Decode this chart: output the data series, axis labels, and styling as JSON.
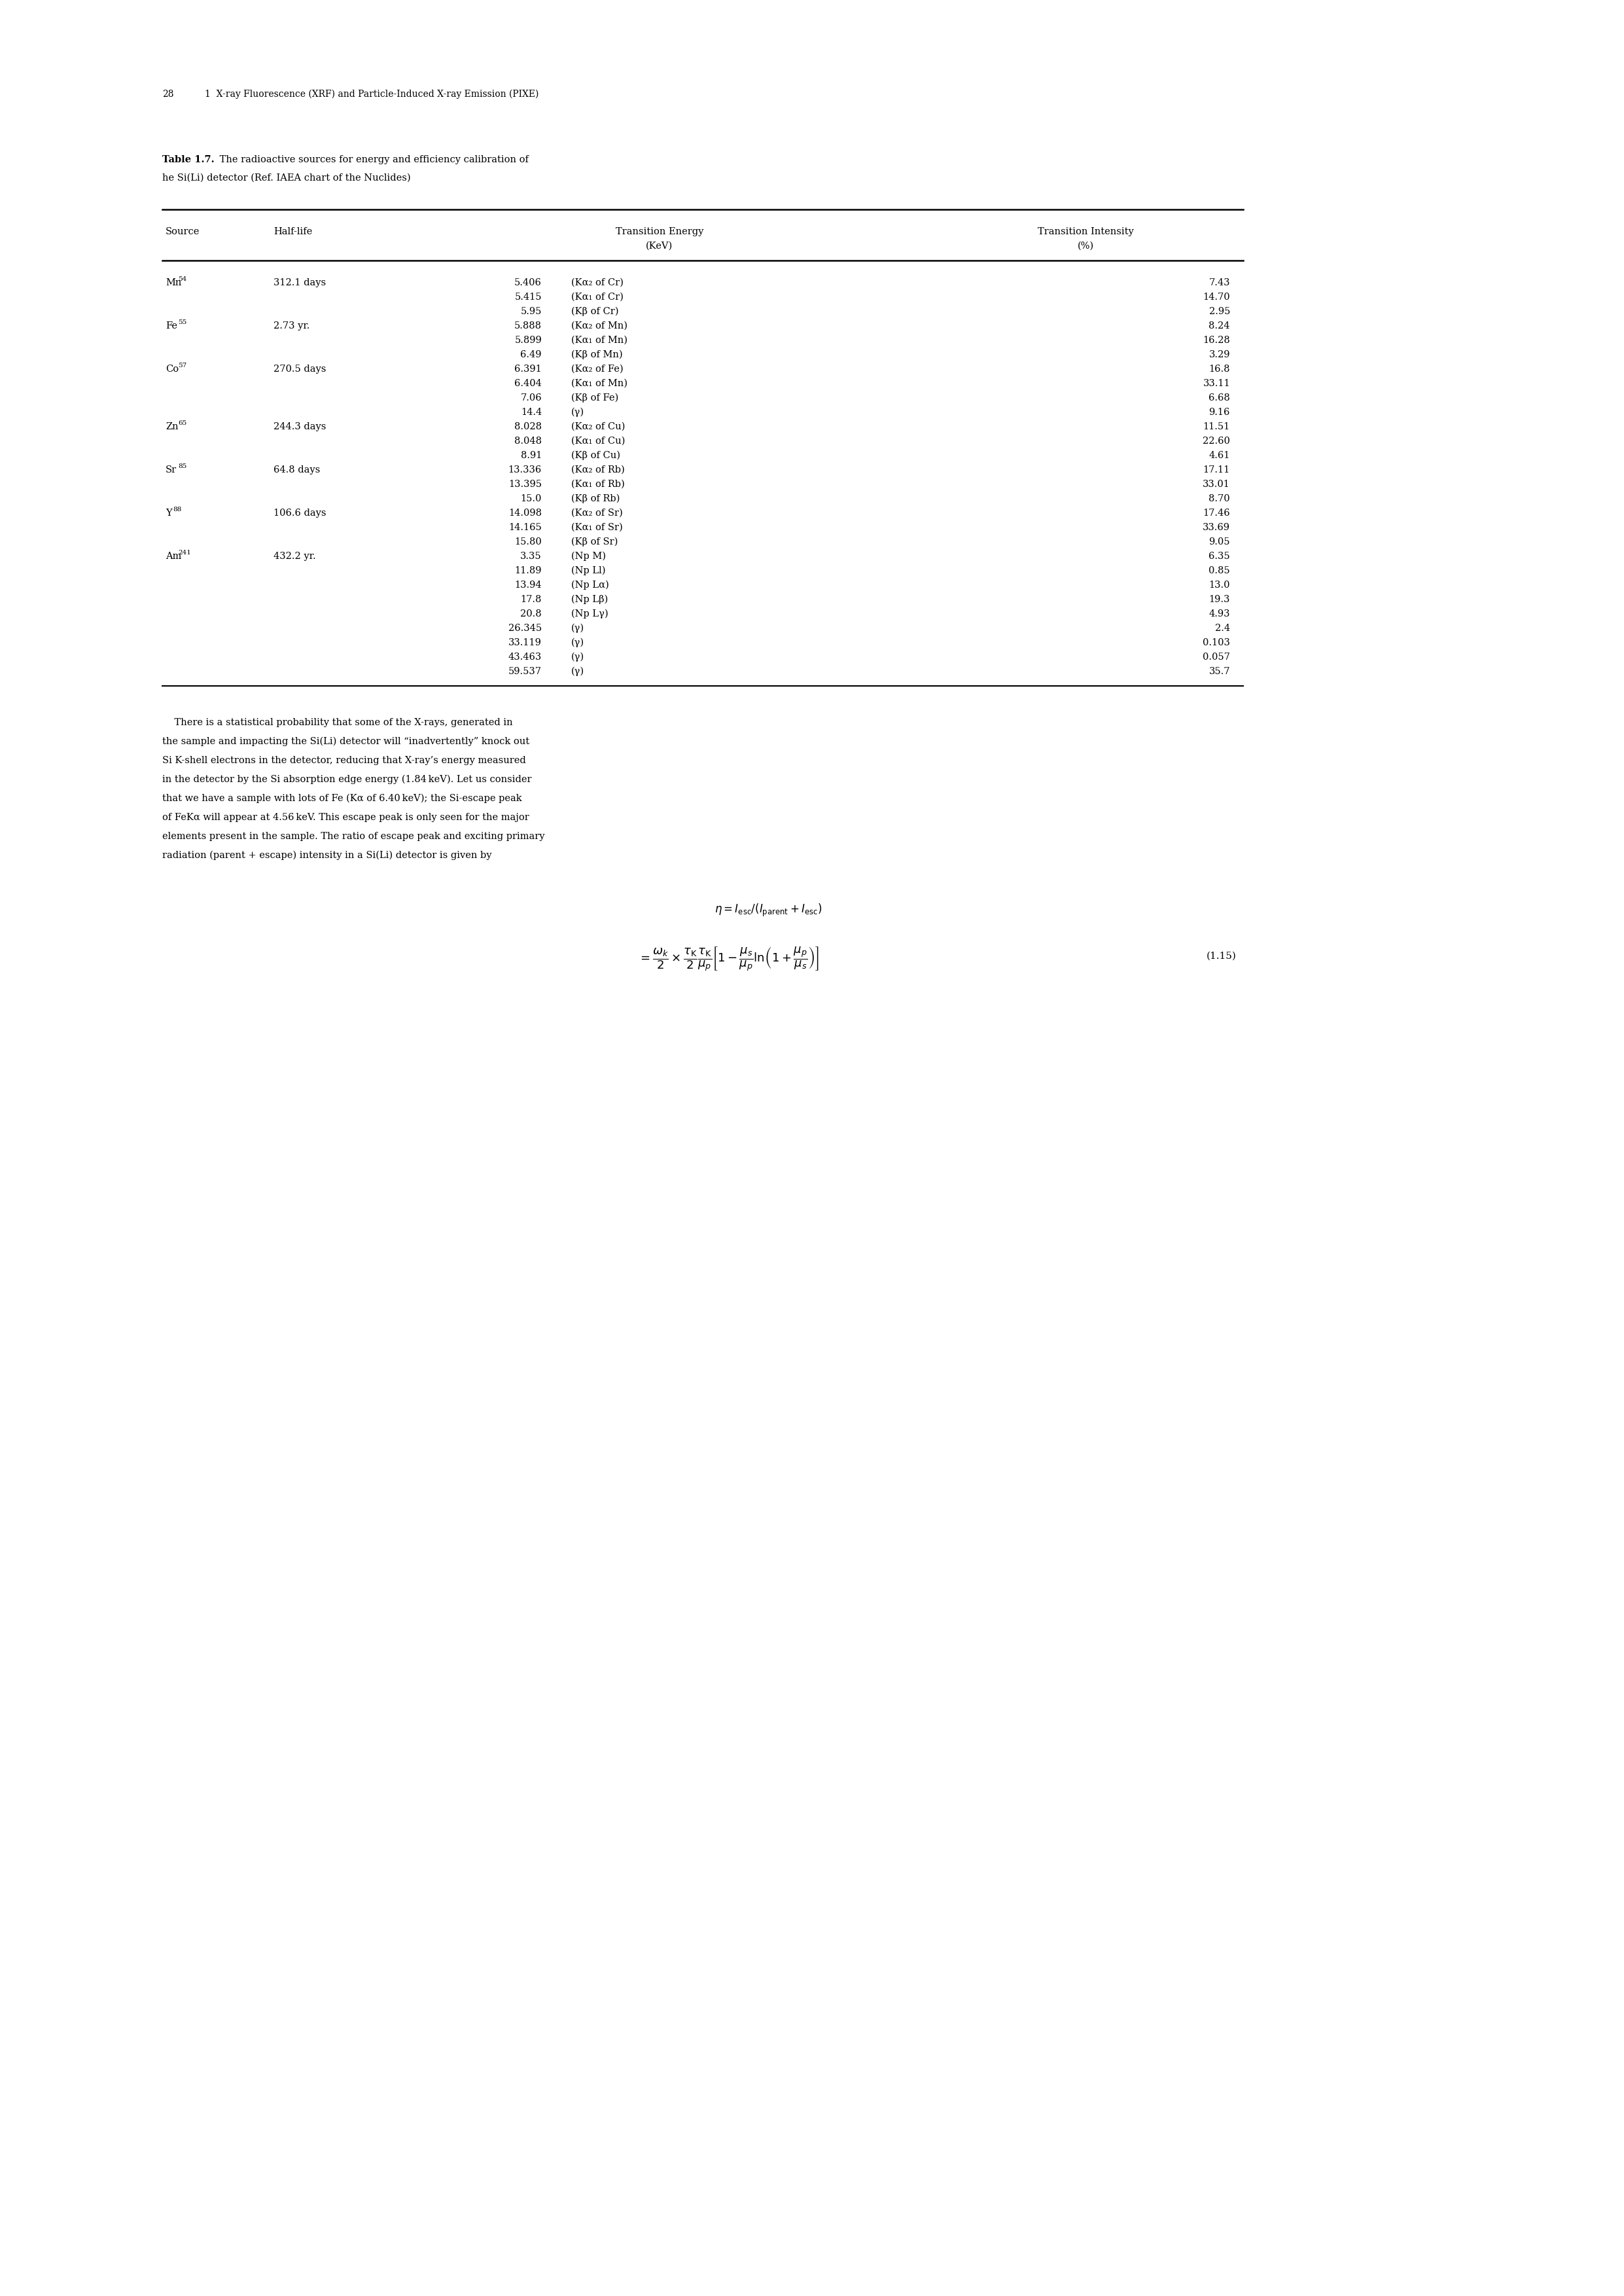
{
  "page_number": "28",
  "chapter_header": "1  X-ray Fluorescence (XRF) and Particle-Induced X-ray Emission (PIXE)",
  "table_title_bold": "Table 1.7.",
  "table_title_rest": " The radioactive sources for energy and efficiency calibration of the Si(Li) detector (Ref. IAEA chart of the Nuclides)",
  "rows": [
    [
      "Mn",
      "54",
      "312.1 days",
      "5.406",
      "(Kα₂ of Cr)",
      "7.43"
    ],
    [
      "",
      "",
      "",
      "5.415",
      "(Kα₁ of Cr)",
      "14.70"
    ],
    [
      "",
      "",
      "",
      "5.95",
      "(Kβ of Cr)",
      "2.95"
    ],
    [
      "Fe",
      "55",
      "2.73 yr.",
      "5.888",
      "(Kα₂ of Mn)",
      "8.24"
    ],
    [
      "",
      "",
      "",
      "5.899",
      "(Kα₁ of Mn)",
      "16.28"
    ],
    [
      "",
      "",
      "",
      "6.49",
      "(Kβ of Mn)",
      "3.29"
    ],
    [
      "Co",
      "57",
      "270.5 days",
      "6.391",
      "(Kα₂ of Fe)",
      "16.8"
    ],
    [
      "",
      "",
      "",
      "6.404",
      "(Kα₁ of Mn)",
      "33.11"
    ],
    [
      "",
      "",
      "",
      "7.06",
      "(Kβ of Fe)",
      "6.68"
    ],
    [
      "",
      "",
      "",
      "14.4",
      "(γ)",
      "9.16"
    ],
    [
      "Zn",
      "65",
      "244.3 days",
      "8.028",
      "(Kα₂ of Cu)",
      "11.51"
    ],
    [
      "",
      "",
      "",
      "8.048",
      "(Kα₁ of Cu)",
      "22.60"
    ],
    [
      "",
      "",
      "",
      "8.91",
      "(Kβ of Cu)",
      "4.61"
    ],
    [
      "Sr",
      "85",
      "64.8 days",
      "13.336",
      "(Kα₂ of Rb)",
      "17.11"
    ],
    [
      "",
      "",
      "",
      "13.395",
      "(Kα₁ of Rb)",
      "33.01"
    ],
    [
      "",
      "",
      "",
      "15.0",
      "(Kβ of Rb)",
      "8.70"
    ],
    [
      "Y",
      "88",
      "106.6 days",
      "14.098",
      "(Kα₂ of Sr)",
      "17.46"
    ],
    [
      "",
      "",
      "",
      "14.165",
      "(Kα₁ of Sr)",
      "33.69"
    ],
    [
      "",
      "",
      "",
      "15.80",
      "(Kβ of Sr)",
      "9.05"
    ],
    [
      "Am",
      "241",
      "432.2 yr.",
      "3.35",
      "(Np M)",
      "6.35"
    ],
    [
      "",
      "",
      "",
      "11.89",
      "(Np Ll)",
      "0.85"
    ],
    [
      "",
      "",
      "",
      "13.94",
      "(Np Lα)",
      "13.0"
    ],
    [
      "",
      "",
      "",
      "17.8",
      "(Np Lβ)",
      "19.3"
    ],
    [
      "",
      "",
      "",
      "20.8",
      "(Np Lγ)",
      "4.93"
    ],
    [
      "",
      "",
      "",
      "26.345",
      "(γ)",
      "2.4"
    ],
    [
      "",
      "",
      "",
      "33.119",
      "(γ)",
      "0.103"
    ],
    [
      "",
      "",
      "",
      "43.463",
      "(γ)",
      "0.057"
    ],
    [
      "",
      "",
      "",
      "59.537",
      "(γ)",
      "35.7"
    ]
  ],
  "paragraph_lines": [
    "    There is a statistical probability that some of the X-rays, generated in",
    "the sample and impacting the Si(Li) detector will “inadvertently” knock out",
    "Si K-shell electrons in the detector, reducing that X-ray’s energy measured",
    "in the detector by the Si absorption edge energy (1.84 keV). Let us consider",
    "that we have a sample with lots of Fe (Kα of 6.40 keV); the Si-escape peak",
    "of FeKα will appear at 4.56 keV. This escape peak is only seen for the major",
    "elements present in the sample. The ratio of escape peak and exciting primary",
    "radiation (parent + escape) intensity in a Si(Li) detector is given by"
  ],
  "eq_label": "(1.15)"
}
